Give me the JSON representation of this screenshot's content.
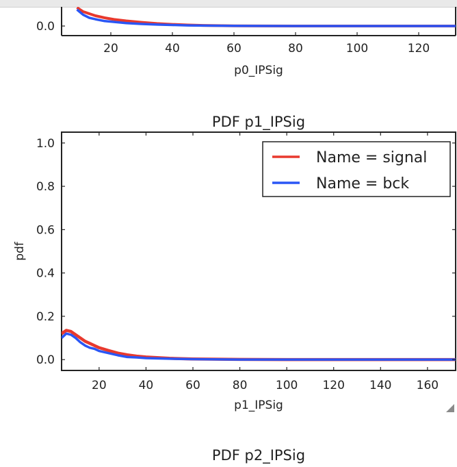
{
  "chart_data": [
    {
      "type": "line",
      "title": "",
      "xlabel": "p0_IPSig",
      "ylabel": "",
      "xlim": [
        4,
        132
      ],
      "ylim_visible_bottom": 0.0,
      "x_ticks": [
        20,
        40,
        60,
        80,
        100,
        120
      ],
      "y_ticks": [
        0.0
      ],
      "series": [
        {
          "color": "#e8392e",
          "x": [
            9,
            11,
            13,
            15,
            18,
            21,
            25,
            30,
            35,
            40,
            45,
            50,
            60,
            80,
            100,
            132
          ],
          "y": [
            0.09,
            0.07,
            0.06,
            0.05,
            0.04,
            0.032,
            0.025,
            0.018,
            0.012,
            0.008,
            0.005,
            0.003,
            0.001,
            0.0,
            0.0,
            0.0
          ]
        },
        {
          "color": "#2a56f5",
          "x": [
            9,
            11,
            13,
            15,
            18,
            21,
            25,
            30,
            35,
            40,
            45,
            50,
            60,
            80,
            100,
            132
          ],
          "y": [
            0.08,
            0.055,
            0.04,
            0.033,
            0.024,
            0.02,
            0.014,
            0.01,
            0.007,
            0.005,
            0.003,
            0.002,
            0.001,
            0.0,
            0.0,
            0.0
          ]
        }
      ]
    },
    {
      "type": "line",
      "title": "PDF p1_IPSig",
      "xlabel": "p1_IPSig",
      "ylabel": "pdf",
      "xlim": [
        4,
        172
      ],
      "ylim": [
        -0.05,
        1.05
      ],
      "x_ticks": [
        20,
        40,
        60,
        80,
        100,
        120,
        140,
        160
      ],
      "y_ticks": [
        0.0,
        0.2,
        0.4,
        0.6,
        0.8,
        1.0
      ],
      "legend_position": "top-right",
      "series": [
        {
          "name": "Name = signal",
          "color": "#e8392e",
          "x": [
            4,
            6,
            8,
            10,
            12,
            14,
            16,
            18,
            20,
            24,
            28,
            32,
            36,
            40,
            50,
            60,
            80,
            100,
            172
          ],
          "y": [
            0.12,
            0.135,
            0.13,
            0.115,
            0.1,
            0.085,
            0.075,
            0.065,
            0.055,
            0.042,
            0.03,
            0.022,
            0.016,
            0.012,
            0.006,
            0.003,
            0.001,
            0.0,
            0.0
          ]
        },
        {
          "name": "Name = bck",
          "color": "#2a56f5",
          "x": [
            4,
            6,
            8,
            10,
            12,
            14,
            16,
            18,
            20,
            24,
            28,
            32,
            36,
            40,
            50,
            60,
            80,
            100,
            172
          ],
          "y": [
            0.1,
            0.12,
            0.115,
            0.1,
            0.08,
            0.065,
            0.055,
            0.05,
            0.04,
            0.03,
            0.02,
            0.012,
            0.01,
            0.007,
            0.004,
            0.002,
            0.0,
            0.0,
            0.0
          ]
        }
      ]
    },
    {
      "type": "line",
      "title": "PDF p2_IPSig"
    }
  ]
}
